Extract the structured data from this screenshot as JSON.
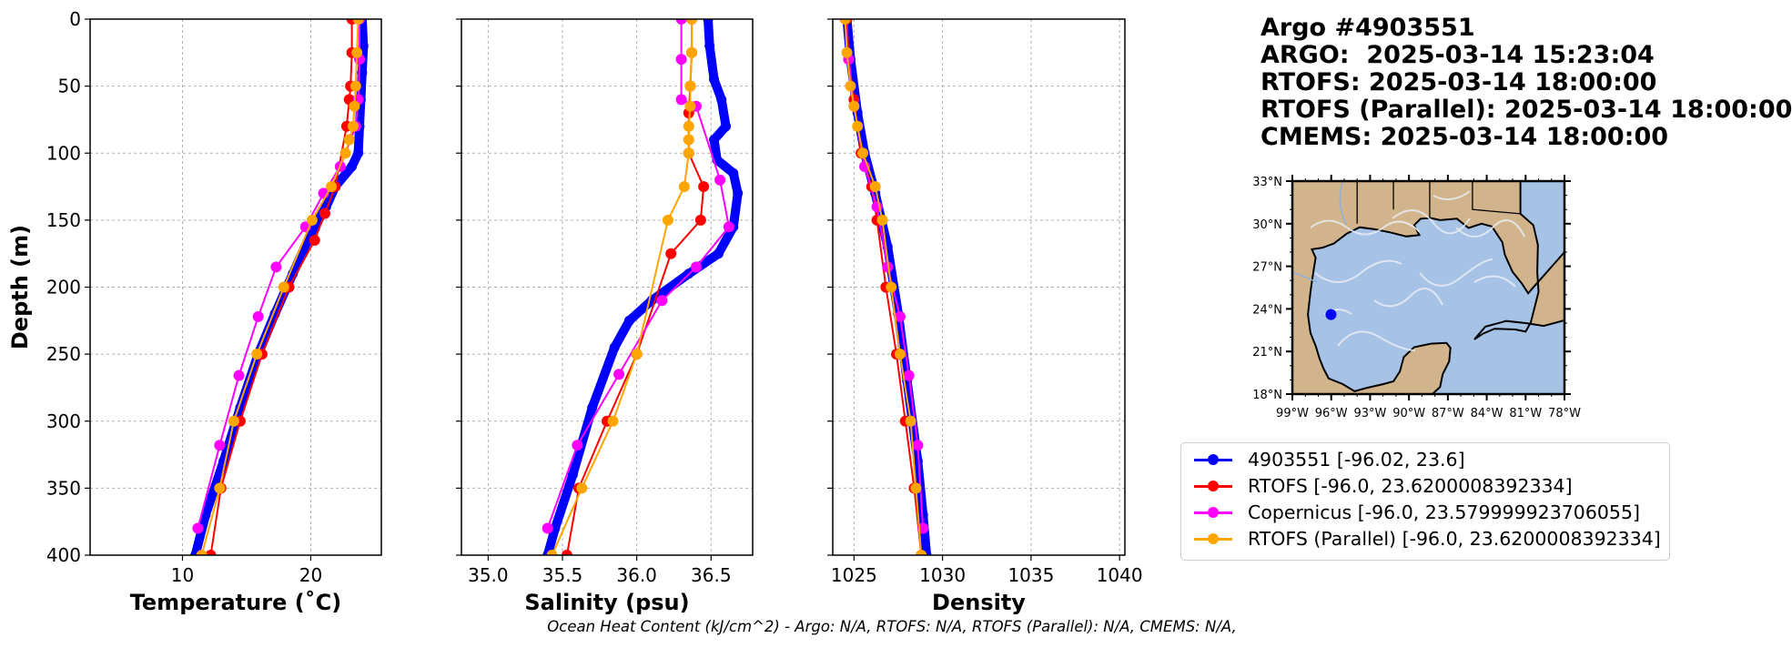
{
  "title_lines": [
    "Argo #4903551",
    "ARGO:  2025-03-14 15:23:04",
    "RTOFS: 2025-03-14 18:00:00",
    "RTOFS (Parallel): 2025-03-14 18:00:00",
    "CMEMS: 2025-03-14 18:00:00"
  ],
  "footer": "Ocean Heat Content (kJ/cm^2) - Argo: N/A,  RTOFS: N/A,  RTOFS (Parallel): N/A,  CMEMS: N/A,",
  "legend": [
    {
      "label": "4903551 [-96.02, 23.6]",
      "color": "#0000ff"
    },
    {
      "label": "RTOFS [-96.0, 23.6200008392334]",
      "color": "#ff0000"
    },
    {
      "label": "Copernicus [-96.0, 23.579999923706055]",
      "color": "#ff00ff"
    },
    {
      "label": "RTOFS (Parallel) [-96.0, 23.6200008392334]",
      "color": "#ffa500"
    }
  ],
  "map": {
    "lat_labels": [
      "33°N",
      "30°N",
      "27°N",
      "24°N",
      "21°N",
      "18°N"
    ],
    "lon_labels": [
      "99°W",
      "96°W",
      "93°W",
      "90°W",
      "87°W",
      "84°W",
      "81°W",
      "78°W"
    ],
    "land_color": "#d2b48c",
    "ocean_color": "#a6c3e6",
    "float_marker": {
      "lon": -96.02,
      "lat": 23.6,
      "color": "#0000ff"
    }
  },
  "chart_data": [
    {
      "type": "line",
      "xlabel": "Temperature (˚C)",
      "ylabel": "Depth (m)",
      "xlim": [
        2.8,
        25.5
      ],
      "ylim": [
        400,
        0
      ],
      "xticks": [
        10,
        20
      ],
      "yticks": [
        0,
        50,
        100,
        150,
        200,
        250,
        300,
        350,
        400
      ],
      "grid": true,
      "series": [
        {
          "name": "4903551",
          "color": "#0000ff",
          "x": [
            24.0,
            24.1,
            24.0,
            23.9,
            23.8,
            23.7,
            23.2,
            21.9,
            21.2,
            20.0,
            18.6,
            17.2,
            15.9,
            14.5,
            13.2,
            11.8,
            11.0
          ],
          "y": [
            0,
            20,
            40,
            60,
            80,
            100,
            110,
            125,
            140,
            160,
            190,
            220,
            250,
            290,
            330,
            370,
            400
          ]
        },
        {
          "name": "RTOFS",
          "color": "#ff0000",
          "x": [
            23.2,
            23.2,
            23.1,
            23.0,
            22.8,
            21.9,
            21.1,
            20.3,
            18.3,
            16.2,
            14.5,
            13.0,
            12.2
          ],
          "y": [
            0,
            25,
            50,
            60,
            80,
            125,
            145,
            165,
            200,
            250,
            300,
            350,
            400
          ]
        },
        {
          "name": "Copernicus",
          "color": "#ff00ff",
          "x": [
            23.8,
            23.8,
            23.7,
            23.5,
            22.3,
            21.0,
            19.6,
            17.3,
            15.9,
            14.4,
            12.9,
            11.2
          ],
          "y": [
            0,
            30,
            60,
            80,
            110,
            130,
            155,
            185,
            222,
            266,
            318,
            380
          ]
        },
        {
          "name": "RTOFS (Parallel)",
          "color": "#ffa500",
          "x": [
            23.7,
            23.6,
            23.5,
            23.4,
            23.3,
            23.0,
            22.7,
            21.6,
            20.1,
            17.9,
            15.8,
            14.0,
            12.9,
            11.5
          ],
          "y": [
            0,
            25,
            50,
            65,
            80,
            90,
            100,
            125,
            150,
            200,
            250,
            300,
            350,
            400
          ]
        }
      ]
    },
    {
      "type": "line",
      "xlabel": "Salinity (psu)",
      "xlim": [
        34.82,
        36.78
      ],
      "ylim": [
        400,
        0
      ],
      "xticks": [
        35.0,
        35.5,
        36.0,
        36.5
      ],
      "grid": true,
      "series": [
        {
          "name": "4903551",
          "color": "#0000ff",
          "x": [
            36.48,
            36.49,
            36.52,
            36.57,
            36.6,
            36.52,
            36.54,
            36.65,
            36.68,
            36.65,
            36.55,
            36.35,
            36.1,
            35.95,
            35.85,
            35.7,
            35.57,
            35.45,
            35.4
          ],
          "y": [
            0,
            20,
            45,
            60,
            80,
            90,
            105,
            115,
            130,
            155,
            175,
            190,
            210,
            225,
            245,
            290,
            340,
            380,
            400
          ]
        },
        {
          "name": "RTOFS",
          "color": "#ff0000",
          "x": [
            36.37,
            36.37,
            36.36,
            36.35,
            36.35,
            36.45,
            36.43,
            36.23,
            36.0,
            35.8,
            35.61,
            35.53
          ],
          "y": [
            0,
            25,
            50,
            70,
            100,
            125,
            150,
            175,
            250,
            300,
            350,
            400
          ]
        },
        {
          "name": "Copernicus",
          "color": "#ff00ff",
          "x": [
            36.3,
            36.3,
            36.3,
            36.4,
            36.56,
            36.62,
            36.4,
            36.17,
            35.88,
            35.6,
            35.4
          ],
          "y": [
            0,
            30,
            60,
            65,
            120,
            155,
            185,
            210,
            265,
            318,
            380
          ]
        },
        {
          "name": "RTOFS (Parallel)",
          "color": "#ffa500",
          "x": [
            36.37,
            36.37,
            36.36,
            36.36,
            36.35,
            36.35,
            36.35,
            36.32,
            36.21,
            36.0,
            35.84,
            35.63,
            35.43
          ],
          "y": [
            0,
            25,
            50,
            65,
            80,
            90,
            100,
            125,
            150,
            250,
            300,
            350,
            400
          ]
        }
      ]
    },
    {
      "type": "line",
      "xlabel": "Density",
      "xlim": [
        1023.8,
        1040.3
      ],
      "ylim": [
        400,
        0
      ],
      "xticks": [
        1025,
        1030,
        1035,
        1040
      ],
      "grid": true,
      "series": [
        {
          "name": "4903551",
          "color": "#0000ff",
          "x": [
            1024.6,
            1024.8,
            1025.2,
            1025.6,
            1026.2,
            1026.9,
            1027.5,
            1028.0,
            1028.6,
            1028.9,
            1029.1
          ],
          "y": [
            0,
            30,
            70,
            100,
            130,
            170,
            220,
            270,
            330,
            370,
            400
          ]
        },
        {
          "name": "RTOFS",
          "color": "#ff0000",
          "x": [
            1024.6,
            1024.7,
            1025.0,
            1025.4,
            1026.0,
            1026.3,
            1026.8,
            1027.4,
            1027.9,
            1028.4,
            1028.8
          ],
          "y": [
            0,
            30,
            60,
            100,
            125,
            150,
            200,
            250,
            300,
            350,
            400
          ]
        },
        {
          "name": "Copernicus",
          "color": "#ff00ff",
          "x": [
            1024.5,
            1024.7,
            1025.0,
            1025.6,
            1026.3,
            1026.9,
            1027.6,
            1028.1,
            1028.6,
            1028.9
          ],
          "y": [
            0,
            30,
            65,
            110,
            140,
            185,
            222,
            266,
            318,
            380
          ]
        },
        {
          "name": "RTOFS (Parallel)",
          "color": "#ffa500",
          "x": [
            1024.5,
            1024.6,
            1024.8,
            1025.0,
            1025.2,
            1025.5,
            1026.2,
            1026.6,
            1027.1,
            1027.6,
            1028.2,
            1028.5,
            1028.8
          ],
          "y": [
            0,
            25,
            50,
            65,
            80,
            100,
            125,
            150,
            200,
            250,
            300,
            350,
            400
          ]
        }
      ]
    }
  ]
}
